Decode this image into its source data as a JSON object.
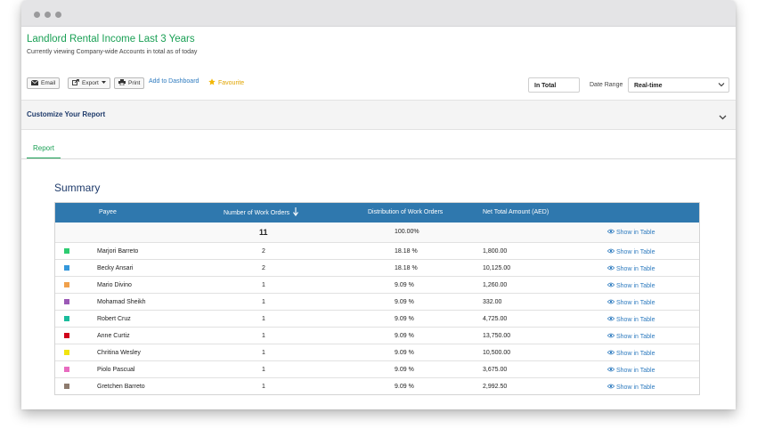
{
  "report": {
    "title": "Landlord Rental Income Last 3 Years",
    "subtitle": "Currently viewing Company-wide Accounts in total as of today"
  },
  "toolbar": {
    "email": "Email",
    "export": "Export",
    "print": "Print",
    "add_dashboard": "Add to Dashboard",
    "favourite": "Favourite",
    "scope_value": "In Total",
    "date_range_label": "Date Range",
    "date_range_value": "Real-time"
  },
  "customize": {
    "label": "Customize Your Report"
  },
  "tabs": [
    {
      "label": "Report"
    }
  ],
  "summary": {
    "title": "Summary",
    "columns": {
      "payee": "Payee",
      "orders": "Number of Work Orders",
      "distribution": "Distribution of Work Orders",
      "net_total": "Net Total Amount (AED)"
    },
    "total": {
      "orders": "11",
      "distribution": "100.00%",
      "action": "Show in Table"
    },
    "rows": [
      {
        "payee": "Marjori Barreto",
        "orders": "2",
        "distribution": "18.18 %",
        "net_total": "1,800.00",
        "action": "Show in Table",
        "color": "#2ecc71"
      },
      {
        "payee": "Becky Ansari",
        "orders": "2",
        "distribution": "18.18 %",
        "net_total": "10,125.00",
        "action": "Show in Table",
        "color": "#3498db"
      },
      {
        "payee": "Mario Divino",
        "orders": "1",
        "distribution": "9.09 %",
        "net_total": "1,260.00",
        "action": "Show in Table",
        "color": "#f0a04b"
      },
      {
        "payee": "Mohamad Sheikh",
        "orders": "1",
        "distribution": "9.09 %",
        "net_total": "332.00",
        "action": "Show in Table",
        "color": "#9b59b6"
      },
      {
        "payee": "Robert Cruz",
        "orders": "1",
        "distribution": "9.09 %",
        "net_total": "4,725.00",
        "action": "Show in Table",
        "color": "#1abc9c"
      },
      {
        "payee": "Anne Curtiz",
        "orders": "1",
        "distribution": "9.09 %",
        "net_total": "13,750.00",
        "action": "Show in Table",
        "color": "#d0021b"
      },
      {
        "payee": "Chritina Wesley",
        "orders": "1",
        "distribution": "9.09 %",
        "net_total": "10,500.00",
        "action": "Show in Table",
        "color": "#f1e40f"
      },
      {
        "payee": "Piolo Pascual",
        "orders": "1",
        "distribution": "9.09 %",
        "net_total": "3,675.00",
        "action": "Show in Table",
        "color": "#e86bc0"
      },
      {
        "payee": "Gretchen Barreto",
        "orders": "1",
        "distribution": "9.09 %",
        "net_total": "2,992.50",
        "action": "Show in Table",
        "color": "#8d7b6e"
      }
    ]
  },
  "colors": {
    "brand_green": "#1aa055",
    "header_blue": "#2f78ae",
    "navy": "#1f3b6b",
    "link_blue": "#2e7bbf",
    "star": "#f2b705"
  }
}
